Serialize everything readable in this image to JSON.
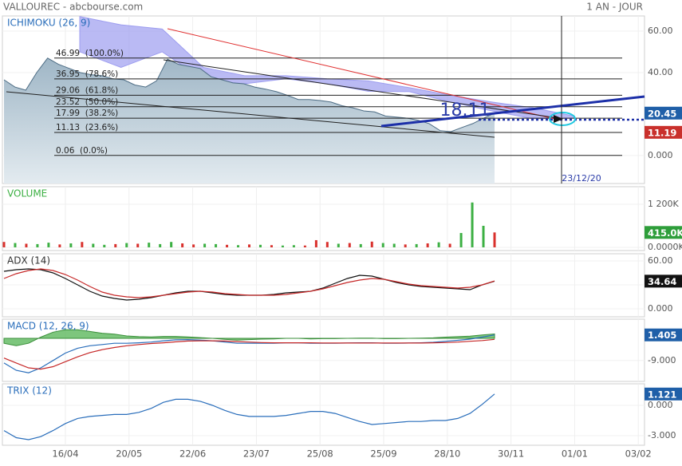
{
  "header": {
    "title": "VALLOUREC - abcbourse.com",
    "period": "1 AN - JOUR"
  },
  "x_axis_labels": [
    "16/04",
    "20/05",
    "22/06",
    "23/07",
    "25/08",
    "25/09",
    "28/10",
    "30/11",
    "01/01",
    "03/02"
  ],
  "chart_data": [
    {
      "type": "area",
      "title": "ICHIMOKU (26, 9)",
      "series": [
        {
          "name": "VALLOUREC",
          "color": "#4d6c84",
          "values": [
            36.5,
            33,
            31.5,
            40,
            47,
            44,
            42,
            40,
            39,
            38.5,
            37,
            36.5,
            34,
            33,
            36,
            46.5,
            44,
            43,
            42,
            38,
            36.5,
            35,
            34.6,
            33,
            32,
            30.8,
            29,
            27,
            27,
            26.5,
            25.8,
            24,
            23,
            21.5,
            21,
            19,
            18.5,
            18,
            17,
            15.4,
            12,
            11.5,
            13.5,
            15.4,
            18,
            20.45
          ]
        }
      ],
      "cloud": {
        "color": "#9d9df0",
        "upper": [
          67,
          63,
          61,
          42.5,
          38.5,
          38.5,
          37,
          36,
          32.7,
          29,
          25.8,
          23,
          19
        ],
        "lower": [
          50,
          42.5,
          50,
          36.5,
          34.6,
          37,
          34.6,
          31,
          30.8,
          25.8,
          21.5,
          17.7,
          18
        ]
      },
      "levels": [
        {
          "value": 46.99,
          "label": "46.99  (100.0%)"
        },
        {
          "value": 36.95,
          "label": "36.95  (78.6%)"
        },
        {
          "value": 29.06,
          "label": "29.06  (61.8%)"
        },
        {
          "value": 23.52,
          "label": "23.52  (50.0%)"
        },
        {
          "value": 17.99,
          "label": "17.99  (38.2%)"
        },
        {
          "value": 11.13,
          "label": "11.13  (23.6%)"
        },
        {
          "value": 0.06,
          "label": "0.06  (0.0%)"
        }
      ],
      "annotations": [
        "18.11",
        "23/12/20"
      ],
      "ylim": [
        -13.5,
        67.3
      ],
      "yticks": [
        {
          "value": 60,
          "label": "60.00"
        },
        {
          "value": 40,
          "label": "40.00"
        },
        {
          "value": 0,
          "label": "0.000"
        }
      ],
      "last_values": [
        {
          "value": 20.45,
          "color": "#1f5fa8"
        },
        {
          "value": 11.19,
          "color": "#c9302c"
        }
      ]
    },
    {
      "type": "bar",
      "title": "VOLUME",
      "values": [
        150000,
        120000,
        100000,
        90000,
        130000,
        80000,
        110000,
        150000,
        100000,
        70000,
        90000,
        120000,
        100000,
        130000,
        90000,
        150000,
        110000,
        80000,
        100000,
        90000,
        70000,
        60000,
        80000,
        70000,
        60000,
        50000,
        60000,
        50000,
        200000,
        150000,
        100000,
        120000,
        90000,
        160000,
        120000,
        100000,
        80000,
        90000,
        110000,
        140000,
        100000,
        400000,
        1250000,
        600000,
        415000
      ],
      "colors": [
        "#d9302c",
        "#3cb043",
        "#d9302c",
        "#3cb043",
        "#3cb043",
        "#d9302c",
        "#3cb043",
        "#d9302c",
        "#3cb043",
        "#3cb043",
        "#d9302c",
        "#3cb043",
        "#d9302c",
        "#3cb043",
        "#3cb043",
        "#3cb043",
        "#d9302c",
        "#d9302c",
        "#3cb043",
        "#3cb043",
        "#d9302c",
        "#3cb043",
        "#d9302c",
        "#3cb043",
        "#d9302c",
        "#3cb043",
        "#3cb043",
        "#d9302c",
        "#d9302c",
        "#d9302c",
        "#3cb043",
        "#d9302c",
        "#3cb043",
        "#d9302c",
        "#3cb043",
        "#3cb043",
        "#d9302c",
        "#3cb043",
        "#d9302c",
        "#3cb043",
        "#d9302c",
        "#3cb043",
        "#3cb043",
        "#3cb043",
        "#d9302c"
      ],
      "ylim": [
        -90000,
        1690000
      ],
      "yticks": [
        {
          "value": 1200000,
          "label": "1 200K"
        },
        {
          "value": 0,
          "label": "0.0000K"
        }
      ],
      "last_values": [
        {
          "value": 415000,
          "label": "415.0K",
          "color": "#2e9e3a"
        }
      ]
    },
    {
      "type": "line",
      "title": "ADX (14)",
      "series": [
        {
          "name": "ADX",
          "color": "#111111",
          "values": [
            47,
            49,
            50,
            49,
            45,
            38,
            30,
            22,
            16,
            13,
            11,
            12,
            14,
            17,
            20,
            22,
            22,
            20,
            18,
            17,
            17,
            17,
            18,
            20,
            21,
            22,
            26,
            32,
            38,
            42,
            41,
            37,
            33,
            30,
            28,
            27,
            26,
            25,
            24,
            30,
            34.64
          ]
        },
        {
          "name": "DI",
          "color": "#c62828",
          "values": [
            38,
            44,
            48,
            50,
            48,
            43,
            36,
            28,
            21,
            17,
            15,
            14,
            15,
            17,
            19,
            21,
            22,
            21,
            19,
            18,
            17,
            17,
            17,
            18,
            20,
            22,
            25,
            29,
            33,
            36,
            38,
            37,
            34,
            31,
            29,
            28,
            27,
            26,
            27,
            30,
            34.9
          ]
        }
      ],
      "ylim": [
        -10,
        69
      ],
      "yticks": [
        {
          "value": 60,
          "label": "60.00"
        },
        {
          "value": 30,
          "label": "30.00"
        },
        {
          "value": 0,
          "label": "0.000"
        }
      ],
      "last_values": [
        {
          "value": 34.64,
          "color": "#111111"
        }
      ]
    },
    {
      "type": "line",
      "title": "MACD (12, 26, 9)",
      "series": [
        {
          "name": "HIST",
          "kind": "area",
          "color": "#5cb85c",
          "values": [
            -2,
            -3,
            -2,
            0.5,
            2.5,
            3.5,
            3.5,
            2.8,
            2.1,
            1.7,
            1,
            0.7,
            0.6,
            0.8,
            0.8,
            0.6,
            0.3,
            0,
            -0.4,
            -0.7,
            -0.5,
            -0.3,
            -0.2,
            0,
            0,
            -0.2,
            -0.1,
            -0.1,
            0,
            0.1,
            0.1,
            -0.1,
            -0.1,
            0,
            0.1,
            0.2,
            0.5,
            0.7,
            0.9,
            1.4,
            1.8
          ]
        },
        {
          "name": "MACD",
          "color": "#2a6ebb",
          "values": [
            -10,
            -13,
            -14,
            -12,
            -9,
            -6,
            -4,
            -3,
            -2.5,
            -2,
            -2,
            -1.8,
            -1.5,
            -1,
            -0.6,
            -0.5,
            -0.7,
            -1,
            -1.5,
            -2,
            -2,
            -2,
            -2,
            -1.8,
            -1.8,
            -2,
            -2,
            -2,
            -1.9,
            -1.8,
            -1.8,
            -2,
            -2,
            -1.9,
            -1.8,
            -1.6,
            -1.2,
            -0.8,
            -0.3,
            0.5,
            1.405
          ]
        },
        {
          "name": "SIGNAL",
          "color": "#c62828",
          "values": [
            -8,
            -10,
            -12,
            -12.5,
            -11.5,
            -9.5,
            -7.5,
            -5.8,
            -4.6,
            -3.7,
            -3,
            -2.5,
            -2.1,
            -1.8,
            -1.4,
            -1.1,
            -1,
            -1,
            -1.1,
            -1.3,
            -1.5,
            -1.7,
            -1.8,
            -1.8,
            -1.8,
            -1.8,
            -1.9,
            -1.9,
            -1.9,
            -1.9,
            -1.9,
            -1.9,
            -1.9,
            -1.9,
            -1.9,
            -1.8,
            -1.7,
            -1.5,
            -1.2,
            -0.9,
            -0.4
          ]
        }
      ],
      "ylim": [
        -17.5,
        7.8
      ],
      "yticks": [
        {
          "value": -9,
          "label": "-9.000"
        }
      ],
      "last_values": [
        {
          "value": 1.405,
          "color": "#1f5fa8"
        }
      ]
    },
    {
      "type": "line",
      "title": "TRIX (12)",
      "series": [
        {
          "name": "TRIX",
          "color": "#2a6ebb",
          "values": [
            -2.5,
            -3.2,
            -3.4,
            -3.1,
            -2.5,
            -1.8,
            -1.3,
            -1.1,
            -1,
            -0.9,
            -0.9,
            -0.7,
            -0.3,
            0.3,
            0.6,
            0.6,
            0.4,
            0,
            -0.5,
            -0.9,
            -1.1,
            -1.1,
            -1.1,
            -1,
            -0.8,
            -0.6,
            -0.6,
            -0.8,
            -1.2,
            -1.6,
            -1.9,
            -1.8,
            -1.7,
            -1.6,
            -1.6,
            -1.5,
            -1.5,
            -1.3,
            -0.8,
            0.1,
            1.121
          ]
        }
      ],
      "ylim": [
        -3.95,
        2.13
      ],
      "yticks": [
        {
          "value": 0,
          "label": "0.000"
        },
        {
          "value": -3,
          "label": "-3.000"
        }
      ],
      "last_values": [
        {
          "value": 1.121,
          "color": "#1f5fa8"
        }
      ]
    }
  ]
}
